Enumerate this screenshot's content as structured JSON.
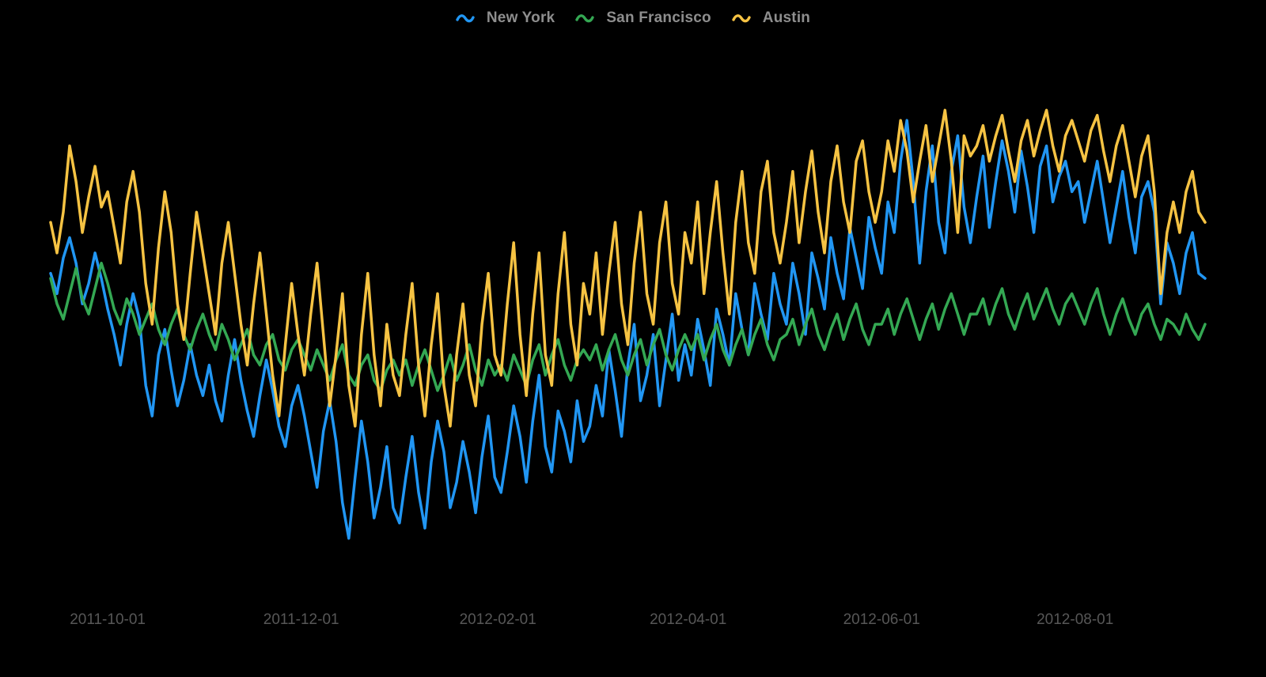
{
  "colors": {
    "background": "#000000",
    "legend_text": "#8e8e8e",
    "tick_text": "#575757",
    "new_york": "#2196F3",
    "san_francisco": "#34A853",
    "austin": "#F6C343"
  },
  "chart_data": {
    "type": "line",
    "title": "",
    "xlabel": "",
    "ylabel": "",
    "grid": false,
    "legend_position": "top-center",
    "x_domain": [
      "2011-09-13",
      "2012-09-11"
    ],
    "step_days": 2,
    "ylim": [
      15,
      105
    ],
    "x_ticks": [
      "2011-10-01",
      "2011-12-01",
      "2012-02-01",
      "2012-04-01",
      "2012-06-01",
      "2012-08-01"
    ],
    "series": [
      {
        "name": "New York",
        "color": "#2196F3",
        "values": [
          70,
          66,
          73,
          77,
          72,
          64,
          68,
          74,
          69,
          63,
          58,
          52,
          60,
          66,
          61,
          48,
          42,
          54,
          59,
          51,
          44,
          49,
          56,
          50,
          46,
          52,
          45,
          41,
          50,
          57,
          49,
          43,
          38,
          46,
          53,
          47,
          40,
          36,
          44,
          48,
          42,
          35,
          28,
          39,
          45,
          37,
          25,
          18,
          30,
          41,
          33,
          22,
          28,
          36,
          24,
          21,
          30,
          38,
          27,
          20,
          33,
          41,
          35,
          24,
          29,
          37,
          31,
          23,
          34,
          42,
          30,
          27,
          35,
          44,
          38,
          29,
          41,
          50,
          36,
          31,
          43,
          39,
          33,
          45,
          37,
          40,
          48,
          42,
          55,
          47,
          38,
          52,
          60,
          45,
          50,
          58,
          44,
          53,
          62,
          49,
          56,
          50,
          61,
          55,
          48,
          63,
          58,
          52,
          66,
          59,
          54,
          68,
          62,
          57,
          70,
          64,
          60,
          72,
          66,
          58,
          74,
          69,
          63,
          77,
          70,
          65,
          79,
          73,
          67,
          81,
          75,
          70,
          84,
          78,
          92,
          100,
          88,
          72,
          86,
          95,
          80,
          74,
          90,
          97,
          83,
          76,
          85,
          93,
          79,
          88,
          96,
          90,
          82,
          94,
          87,
          78,
          91,
          95,
          84,
          89,
          92,
          86,
          88,
          80,
          86,
          92,
          84,
          76,
          83,
          90,
          81,
          74,
          85,
          88,
          82,
          64,
          76,
          72,
          66,
          74,
          78,
          70,
          69
        ]
      },
      {
        "name": "San Francisco",
        "color": "#34A853",
        "values": [
          69,
          64,
          61,
          66,
          71,
          65,
          62,
          67,
          72,
          68,
          63,
          60,
          65,
          62,
          58,
          61,
          64,
          59,
          56,
          60,
          63,
          58,
          55,
          59,
          62,
          58,
          55,
          60,
          57,
          53,
          56,
          59,
          54,
          52,
          56,
          58,
          53,
          51,
          55,
          57,
          54,
          51,
          55,
          52,
          49,
          53,
          56,
          50,
          48,
          52,
          54,
          49,
          47,
          51,
          53,
          50,
          53,
          48,
          52,
          55,
          51,
          47,
          50,
          54,
          49,
          52,
          56,
          51,
          48,
          53,
          50,
          52,
          49,
          54,
          51,
          48,
          53,
          56,
          50,
          54,
          57,
          52,
          49,
          53,
          55,
          53,
          56,
          51,
          55,
          58,
          53,
          50,
          54,
          57,
          52,
          56,
          59,
          54,
          51,
          55,
          58,
          55,
          58,
          53,
          57,
          60,
          55,
          52,
          56,
          59,
          54,
          58,
          61,
          56,
          53,
          57,
          58,
          61,
          56,
          60,
          63,
          58,
          55,
          59,
          62,
          57,
          61,
          64,
          59,
          56,
          60,
          60,
          63,
          58,
          62,
          65,
          61,
          57,
          61,
          64,
          59,
          63,
          66,
          62,
          58,
          62,
          62,
          65,
          60,
          64,
          67,
          62,
          59,
          63,
          66,
          61,
          64,
          67,
          63,
          60,
          64,
          66,
          63,
          60,
          64,
          67,
          62,
          58,
          62,
          65,
          61,
          58,
          62,
          64,
          60,
          57,
          61,
          60,
          58,
          62,
          59,
          57,
          60
        ]
      },
      {
        "name": "Austin",
        "color": "#F6C343",
        "values": [
          80,
          74,
          82,
          95,
          88,
          78,
          85,
          91,
          83,
          86,
          79,
          72,
          84,
          90,
          82,
          68,
          60,
          75,
          86,
          78,
          64,
          57,
          70,
          82,
          74,
          66,
          58,
          72,
          80,
          70,
          60,
          52,
          64,
          74,
          62,
          50,
          42,
          56,
          68,
          58,
          50,
          62,
          72,
          58,
          44,
          54,
          66,
          48,
          40,
          58,
          70,
          54,
          44,
          60,
          50,
          46,
          58,
          68,
          52,
          42,
          56,
          66,
          48,
          40,
          54,
          64,
          50,
          44,
          60,
          70,
          54,
          50,
          64,
          76,
          58,
          46,
          62,
          74,
          54,
          48,
          66,
          78,
          60,
          52,
          68,
          62,
          74,
          58,
          70,
          80,
          64,
          56,
          72,
          82,
          66,
          60,
          76,
          84,
          68,
          62,
          78,
          72,
          84,
          66,
          78,
          88,
          74,
          62,
          80,
          90,
          76,
          70,
          86,
          92,
          78,
          72,
          80,
          90,
          76,
          86,
          94,
          82,
          74,
          88,
          95,
          84,
          78,
          92,
          96,
          86,
          80,
          86,
          96,
          90,
          100,
          94,
          84,
          92,
          99,
          88,
          95,
          102,
          92,
          78,
          97,
          93,
          95,
          99,
          92,
          97,
          101,
          94,
          88,
          96,
          100,
          93,
          98,
          102,
          95,
          90,
          97,
          100,
          96,
          92,
          98,
          101,
          94,
          88,
          95,
          99,
          92,
          85,
          93,
          97,
          86,
          66,
          78,
          84,
          78,
          86,
          90,
          82,
          80
        ]
      }
    ]
  }
}
